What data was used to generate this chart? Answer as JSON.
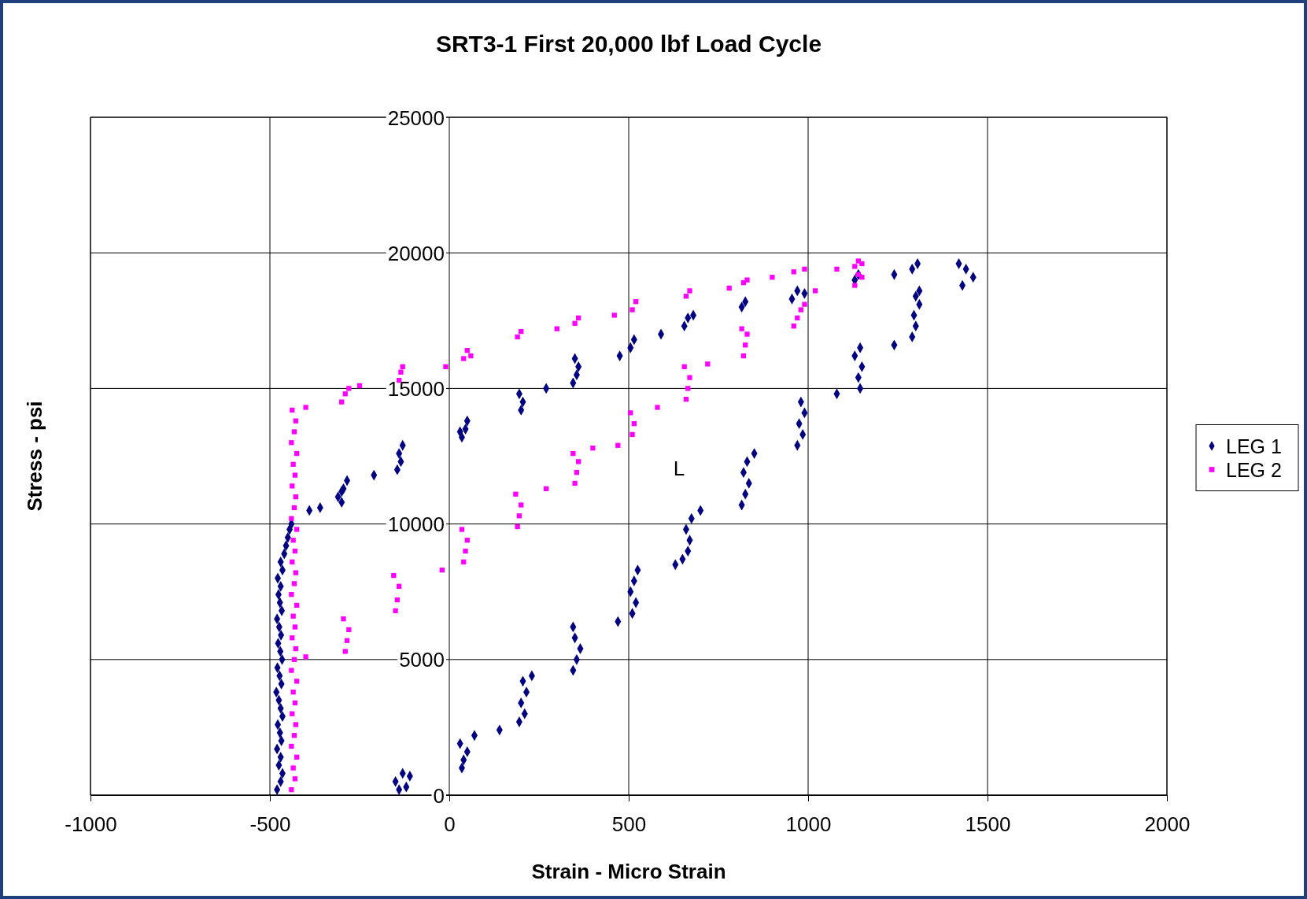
{
  "chart_data": {
    "type": "scatter",
    "title": "SRT3-1  First 20,000 lbf Load Cycle",
    "xlabel": "Strain  -  Micro Strain",
    "ylabel": "Stress  -  psi",
    "xlim": [
      -1000,
      2000
    ],
    "xticks": [
      -1000,
      -500,
      0,
      500,
      1000,
      1500,
      2000
    ],
    "ylim": [
      0,
      25000
    ],
    "yticks": [
      0,
      5000,
      10000,
      15000,
      20000,
      25000
    ],
    "grid": true,
    "legend": "right",
    "annotations": [
      "L"
    ],
    "series": [
      {
        "name": "LEG 1",
        "color": "#000080",
        "marker": "diamond",
        "x": [
          -480,
          -470,
          -465,
          -475,
          -470,
          -480,
          -468,
          -472,
          -478,
          -465,
          -470,
          -475,
          -482,
          -468,
          -473,
          -479,
          -466,
          -471,
          -477,
          -469,
          -474,
          -480,
          -467,
          -472,
          -476,
          -470,
          -478,
          -465,
          -470,
          -460,
          -455,
          -450,
          -445,
          -440,
          -390,
          -360,
          -300,
          -310,
          -295,
          -285,
          -300,
          -210,
          -145,
          -135,
          -140,
          -130,
          35,
          45,
          50,
          30,
          200,
          205,
          195,
          270,
          345,
          355,
          360,
          350,
          475,
          505,
          515,
          590,
          655,
          665,
          680,
          815,
          825,
          955,
          970,
          990,
          1130,
          1140,
          1240,
          1290,
          1305,
          1420,
          1440,
          1460,
          1430,
          -140,
          -120,
          -150,
          -130,
          -110,
          35,
          40,
          50,
          30,
          70,
          140,
          195,
          210,
          200,
          215,
          205,
          230,
          345,
          355,
          365,
          350,
          345,
          470,
          510,
          520,
          505,
          515,
          525,
          630,
          650,
          665,
          670,
          660,
          675,
          700,
          815,
          825,
          835,
          820,
          830,
          850,
          970,
          985,
          975,
          990,
          980,
          1080,
          1145,
          1140,
          1150,
          1130,
          1145,
          1240,
          1290,
          1300,
          1295,
          1310,
          1300,
          1310
        ],
        "values": [
          200,
          500,
          800,
          1100,
          1400,
          1700,
          2000,
          2300,
          2600,
          2900,
          3200,
          3500,
          3800,
          4100,
          4400,
          4700,
          5000,
          5300,
          5600,
          5900,
          6200,
          6500,
          6800,
          7100,
          7400,
          7700,
          8000,
          8300,
          8600,
          8900,
          9200,
          9500,
          9800,
          10000,
          10500,
          10600,
          10800,
          11000,
          11300,
          11600,
          11200,
          11800,
          12000,
          12300,
          12600,
          12900,
          13200,
          13500,
          13800,
          13400,
          14200,
          14500,
          14800,
          15000,
          15200,
          15500,
          15800,
          16100,
          16200,
          16500,
          16800,
          17000,
          17300,
          17600,
          17700,
          18000,
          18200,
          18300,
          18600,
          18500,
          19000,
          19200,
          19200,
          19400,
          19600,
          19600,
          19400,
          19100,
          18800,
          200,
          300,
          500,
          800,
          700,
          1000,
          1300,
          1600,
          1900,
          2200,
          2400,
          2700,
          3000,
          3400,
          3800,
          4200,
          4400,
          4600,
          5000,
          5400,
          5800,
          6200,
          6400,
          6700,
          7100,
          7500,
          7900,
          8300,
          8500,
          8700,
          9000,
          9400,
          9800,
          10200,
          10500,
          10700,
          11100,
          11500,
          11900,
          12300,
          12600,
          12900,
          13300,
          13700,
          14100,
          14500,
          14800,
          15000,
          15400,
          15800,
          16200,
          16500,
          16600,
          16900,
          17300,
          17700,
          18100,
          18400,
          18600
        ]
      },
      {
        "name": "LEG 2",
        "color": "#ff00ff",
        "marker": "square",
        "x": [
          -440,
          -430,
          -435,
          -425,
          -440,
          -432,
          -428,
          -438,
          -430,
          -435,
          -425,
          -440,
          -432,
          -428,
          -438,
          -430,
          -435,
          -425,
          -440,
          -432,
          -428,
          -438,
          -430,
          -435,
          -425,
          -440,
          -432,
          -428,
          -438,
          -430,
          -435,
          -425,
          -440,
          -432,
          -428,
          -438,
          -400,
          -290,
          -285,
          -280,
          -295,
          -150,
          -145,
          -140,
          -155,
          -20,
          40,
          45,
          50,
          35,
          190,
          195,
          200,
          185,
          270,
          350,
          355,
          360,
          345,
          400,
          470,
          510,
          515,
          505,
          580,
          660,
          665,
          670,
          655,
          720,
          820,
          825,
          830,
          815,
          960,
          970,
          980,
          990,
          1130,
          1140,
          1150,
          -400,
          -300,
          -290,
          -280,
          -250,
          -140,
          -135,
          -130,
          -10,
          40,
          50,
          60,
          190,
          200,
          300,
          350,
          360,
          460,
          510,
          520,
          660,
          670,
          780,
          820,
          830,
          900,
          960,
          990,
          1020,
          1080,
          1130,
          1140,
          1150
        ],
        "values": [
          200,
          600,
          1000,
          1400,
          1800,
          2200,
          2600,
          3000,
          3400,
          3800,
          4200,
          4600,
          5000,
          5400,
          5800,
          6200,
          6600,
          7000,
          7400,
          7800,
          8200,
          8600,
          9000,
          9400,
          9800,
          10200,
          10600,
          11000,
          11400,
          11800,
          12200,
          12600,
          13000,
          13400,
          13800,
          14200,
          5100,
          5300,
          5700,
          6100,
          6500,
          6800,
          7200,
          7700,
          8100,
          8300,
          8600,
          9000,
          9400,
          9800,
          9900,
          10300,
          10700,
          11100,
          11300,
          11500,
          11900,
          12300,
          12600,
          12800,
          12900,
          13300,
          13700,
          14100,
          14300,
          14600,
          15000,
          15400,
          15800,
          15900,
          16200,
          16600,
          17000,
          17200,
          17300,
          17600,
          17900,
          18100,
          18800,
          19200,
          19600,
          14300,
          14500,
          14800,
          15000,
          15100,
          15300,
          15600,
          15800,
          15800,
          16100,
          16400,
          16200,
          16900,
          17100,
          17200,
          17400,
          17600,
          17700,
          17900,
          18200,
          18400,
          18600,
          18700,
          18900,
          19000,
          19100,
          19300,
          19400,
          18600,
          19400,
          19500,
          19700,
          19100
        ]
      }
    ]
  }
}
